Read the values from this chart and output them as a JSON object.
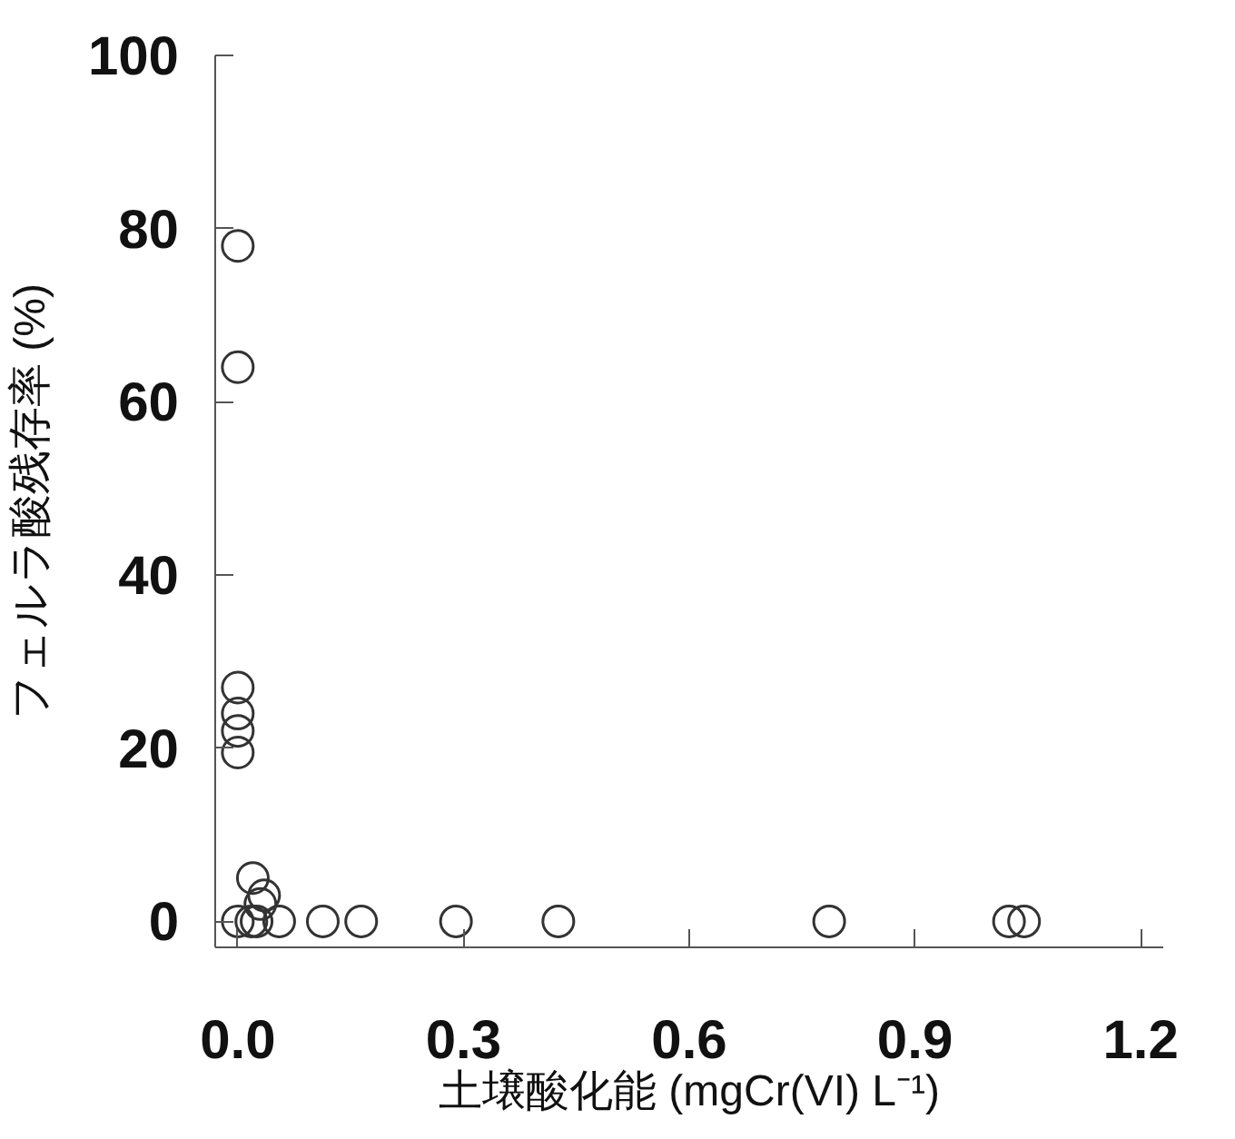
{
  "chart_data": {
    "type": "scatter",
    "xlabel": "土壌酸化能 (mgCr(VI) L⁻¹)",
    "ylabel": "フェルラ酸残存率 (%)",
    "x": [
      0.0,
      0.0,
      0.0,
      0.0,
      0.0,
      0.0,
      0.02,
      0.035,
      0.03,
      0.018,
      0.025,
      0.055,
      0.113,
      0.164,
      0.29,
      0.426,
      0.786,
      1.025,
      1.045,
      0.0
    ],
    "values": [
      78,
      64,
      27,
      24,
      22,
      19.5,
      5,
      3,
      2,
      0,
      0,
      0,
      0,
      0,
      0,
      0,
      0,
      0,
      0,
      0
    ],
    "color": "#333333",
    "marker": "circle",
    "grid": false,
    "xlim": [
      -0.03,
      1.23
    ],
    "ylim": [
      -3,
      100
    ],
    "xticks": [
      {
        "value": 0,
        "label": "0.0"
      },
      {
        "value": 0.3,
        "label": "0.3"
      },
      {
        "value": 0.6,
        "label": "0.6"
      },
      {
        "value": 0.9,
        "label": "0.9"
      },
      {
        "value": 1.2,
        "label": "1.2"
      }
    ],
    "yticks": [
      0,
      20,
      40,
      60,
      80,
      100
    ]
  }
}
